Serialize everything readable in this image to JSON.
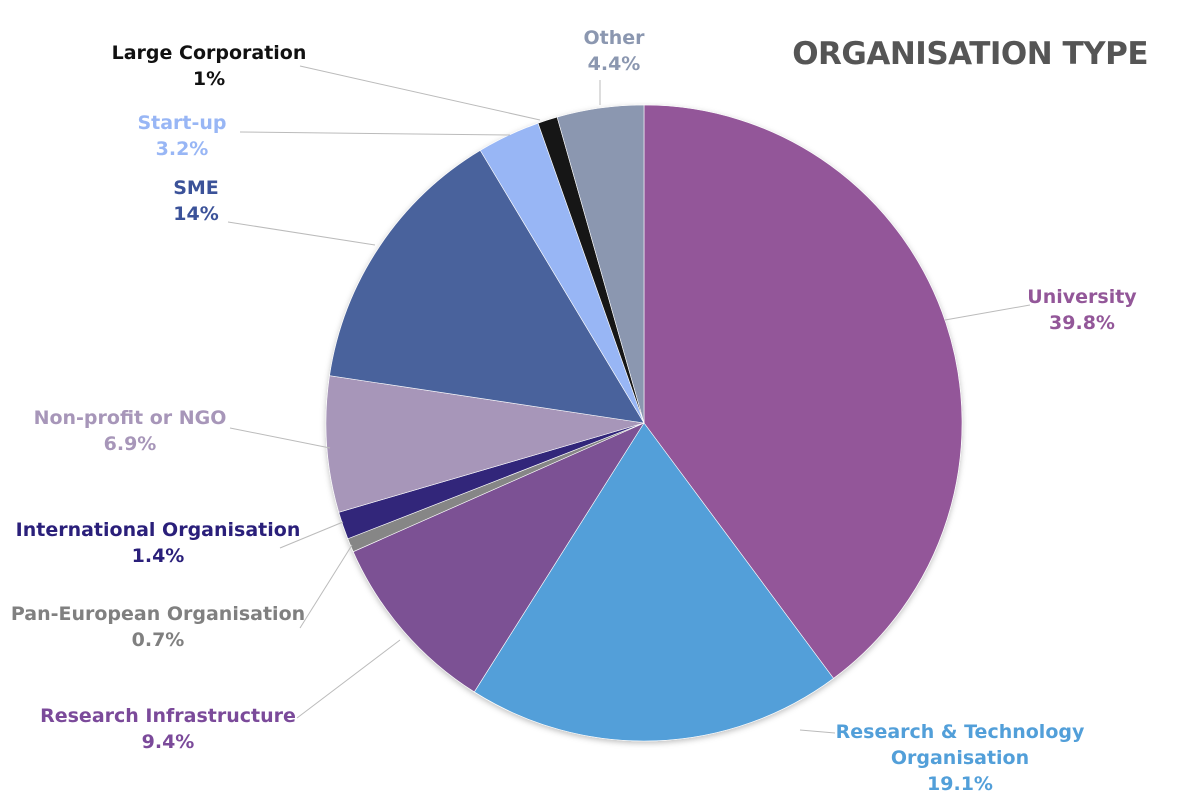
{
  "chart_data": {
    "type": "pie",
    "title": "ORGANISATION TYPE",
    "start": "12 o'clock, clockwise",
    "slices": [
      {
        "label": "University",
        "value": 39.8,
        "display": "39.8%",
        "color": "#935799"
      },
      {
        "label": "Research & Technology Organisation",
        "value": 19.1,
        "display": "19.1%",
        "color": "#529fd9"
      },
      {
        "label": "Research Infrastructure",
        "value": 9.4,
        "display": "9.4%",
        "color": "#7b5194"
      },
      {
        "label": "Pan-European Organisation",
        "value": 0.7,
        "display": "0.7%",
        "color": "#868686"
      },
      {
        "label": "International Organisation",
        "value": 1.4,
        "display": "1.4%",
        "color": "#33287a"
      },
      {
        "label": "Non-profit or NGO",
        "value": 6.9,
        "display": "6.9%",
        "color": "#a796b9"
      },
      {
        "label": "SME",
        "value": 14,
        "display": "14%",
        "color": "#4a629c"
      },
      {
        "label": "Start-up",
        "value": 3.2,
        "display": "3.2%",
        "color": "#98b6f5"
      },
      {
        "label": "Large Corporation",
        "value": 1,
        "display": "1%",
        "color": "#151515"
      },
      {
        "label": "Other",
        "value": 4.4,
        "display": "4.4%",
        "color": "#8b97b0"
      }
    ],
    "label_colors": [
      "#935799",
      "#529fd9",
      "#7b4a9a",
      "#808080",
      "#2a1f7a",
      "#a796b9",
      "#3b5299",
      "#98b6f5",
      "#111111",
      "#8b97b0"
    ]
  }
}
